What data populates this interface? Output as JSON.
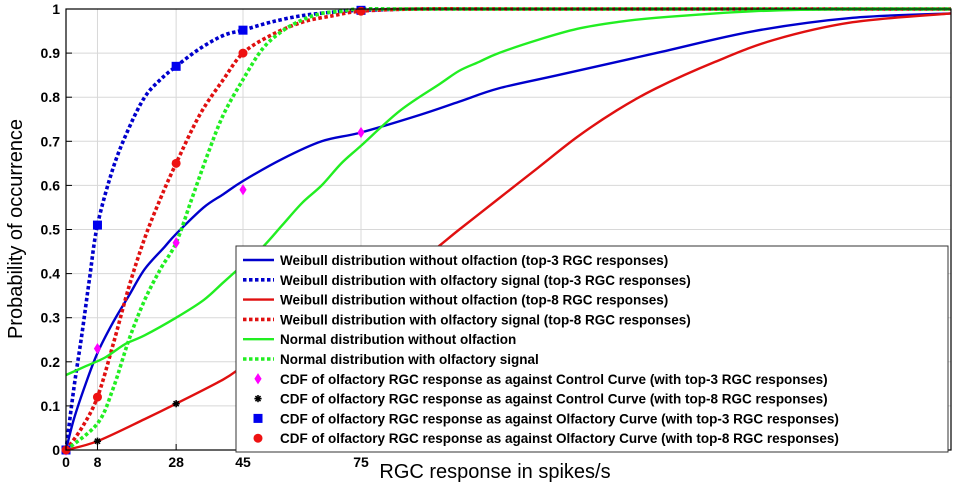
{
  "chart_data": {
    "type": "line",
    "title": "",
    "xlabel": "RGC response in spikes/s",
    "ylabel": "Probability of occurrence",
    "xlim": [
      0,
      225
    ],
    "ylim": [
      0,
      1
    ],
    "grid": true,
    "legend_position": "bottom-right",
    "x_ticks": [
      0,
      8,
      28,
      45,
      75
    ],
    "y_ticks": [
      0,
      0.1,
      0.2,
      0.3,
      0.4,
      0.5,
      0.6,
      0.7,
      0.8,
      0.9,
      1
    ],
    "y_tick_labels": [
      "0",
      "0.1",
      "0.2",
      "0.3",
      "0.4",
      "0.5",
      "0.6",
      "0.7",
      "0.8",
      "0.9",
      "1"
    ],
    "series": [
      {
        "name": "Weibull distribution without olfaction (top-3 RGC responses)",
        "kind": "line",
        "style": "solid",
        "color": "#0000cc",
        "x": [
          0,
          2,
          5,
          8,
          12,
          16,
          20,
          25,
          28,
          35,
          40,
          45,
          55,
          65,
          75,
          90,
          100,
          110,
          125,
          150,
          175,
          200,
          225
        ],
        "y": [
          0,
          0.07,
          0.15,
          0.22,
          0.29,
          0.35,
          0.41,
          0.46,
          0.49,
          0.55,
          0.58,
          0.61,
          0.66,
          0.7,
          0.72,
          0.76,
          0.79,
          0.82,
          0.85,
          0.9,
          0.95,
          0.98,
          0.99
        ]
      },
      {
        "name": "Weibull distribution with olfactory signal (top-3 RGC responses)",
        "kind": "line",
        "style": "dotted",
        "color": "#0000cc",
        "x": [
          0,
          2,
          4,
          6,
          8,
          12,
          16,
          20,
          24,
          28,
          34,
          40,
          45,
          52,
          60,
          68,
          75,
          90,
          110,
          150,
          225
        ],
        "y": [
          0,
          0.14,
          0.26,
          0.39,
          0.51,
          0.64,
          0.73,
          0.8,
          0.84,
          0.87,
          0.91,
          0.94,
          0.952,
          0.97,
          0.985,
          0.993,
          0.997,
          1.0,
          1.0,
          1.0,
          1.0
        ]
      },
      {
        "name": "Weibull distribution without olfaction (top-8 RGC responses)",
        "kind": "line",
        "style": "solid",
        "color": "#e01010",
        "x": [
          0,
          8,
          20,
          28,
          40,
          45,
          55,
          65,
          75,
          90,
          100,
          110,
          120,
          130,
          140,
          150,
          165,
          180,
          200,
          225
        ],
        "y": [
          0,
          0.02,
          0.07,
          0.105,
          0.16,
          0.19,
          0.25,
          0.3,
          0.345,
          0.43,
          0.5,
          0.57,
          0.64,
          0.71,
          0.77,
          0.82,
          0.88,
          0.93,
          0.97,
          0.99
        ]
      },
      {
        "name": "Weibull distribution with olfactory signal (top-8 RGC responses)",
        "kind": "line",
        "style": "dotted",
        "color": "#e01010",
        "x": [
          0,
          4,
          8,
          12,
          16,
          20,
          24,
          28,
          34,
          40,
          45,
          52,
          60,
          68,
          75,
          90,
          120,
          225
        ],
        "y": [
          0,
          0.05,
          0.12,
          0.24,
          0.37,
          0.48,
          0.57,
          0.65,
          0.76,
          0.84,
          0.9,
          0.94,
          0.97,
          0.985,
          0.995,
          1.0,
          1.0,
          1.0
        ]
      },
      {
        "name": "Normal distribution without olfaction",
        "kind": "line",
        "style": "solid",
        "color": "#22ee22",
        "x": [
          0,
          5,
          10,
          15,
          20,
          28,
          35,
          40,
          45,
          50,
          55,
          60,
          65,
          70,
          75,
          85,
          95,
          100,
          105,
          110,
          120,
          130,
          140,
          150,
          175,
          200,
          225
        ],
        "y": [
          0.17,
          0.19,
          0.21,
          0.24,
          0.26,
          0.3,
          0.34,
          0.38,
          0.42,
          0.46,
          0.51,
          0.56,
          0.6,
          0.65,
          0.69,
          0.77,
          0.83,
          0.86,
          0.88,
          0.9,
          0.93,
          0.955,
          0.97,
          0.98,
          0.995,
          1.0,
          1.0
        ]
      },
      {
        "name": "Normal distribution with olfactory signal",
        "kind": "line",
        "style": "dotted",
        "color": "#22ee22",
        "x": [
          0,
          8,
          12,
          16,
          20,
          24,
          28,
          32,
          36,
          40,
          45,
          50,
          55,
          60,
          65,
          70,
          75,
          90,
          120,
          225
        ],
        "y": [
          0,
          0.06,
          0.14,
          0.25,
          0.34,
          0.41,
          0.47,
          0.57,
          0.67,
          0.76,
          0.84,
          0.91,
          0.95,
          0.975,
          0.99,
          0.995,
          1.0,
          1.0,
          1.0,
          1.0
        ]
      },
      {
        "name": "CDF of olfactory RGC response as against Control Curve (with top-3 RGC responses)",
        "kind": "marker",
        "marker": "diamond",
        "color": "#ff00ff",
        "x": [
          0,
          8,
          28,
          45,
          75
        ],
        "y": [
          0,
          0.23,
          0.47,
          0.59,
          0.72
        ]
      },
      {
        "name": "CDF of olfactory RGC response as against Control Curve (with top-8 RGC responses)",
        "kind": "marker",
        "marker": "star",
        "color": "#000000",
        "x": [
          0,
          8,
          28,
          45,
          75
        ],
        "y": [
          0,
          0.02,
          0.105,
          0.19,
          0.345
        ]
      },
      {
        "name": "CDF of olfactory RGC response as against Olfactory Curve (with top-3 RGC responses)",
        "kind": "marker",
        "marker": "square",
        "color": "#0000ee",
        "x": [
          0,
          8,
          28,
          45,
          75
        ],
        "y": [
          0,
          0.51,
          0.87,
          0.952,
          0.997
        ]
      },
      {
        "name": "CDF of olfactory RGC response as against Olfactory Curve (with top-8 RGC responses)",
        "kind": "marker",
        "marker": "circle",
        "color": "#ee1111",
        "x": [
          0,
          8,
          28,
          45,
          75
        ],
        "y": [
          0,
          0.12,
          0.65,
          0.9,
          0.995
        ]
      }
    ]
  }
}
